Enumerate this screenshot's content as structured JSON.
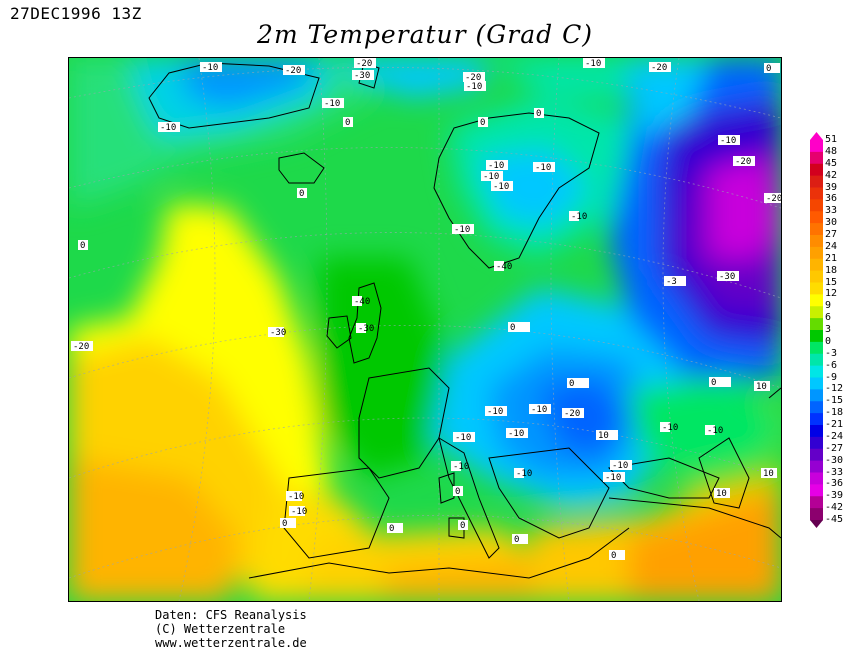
{
  "header": {
    "timestamp": "27DEC1996 13Z",
    "title": "2m Temperatur (Grad C)"
  },
  "legend": {
    "unit_labels": [
      "51",
      "48",
      "45",
      "42",
      "39",
      "36",
      "33",
      "30",
      "27",
      "24",
      "21",
      "18",
      "15",
      "12",
      "9",
      "6",
      "3",
      "0",
      "-3",
      "-6",
      "-9",
      "-12",
      "-15",
      "-18",
      "-21",
      "-24",
      "-27",
      "-30",
      "-33",
      "-36",
      "-39",
      "-42",
      "-45"
    ],
    "colors": [
      "#ff00c8",
      "#e6006e",
      "#d2001e",
      "#dc1e14",
      "#eb320a",
      "#f54600",
      "#ff5a00",
      "#ff7300",
      "#ff8c00",
      "#ffa000",
      "#ffb400",
      "#ffc800",
      "#ffdc00",
      "#ffff00",
      "#c8f000",
      "#64dc00",
      "#00c800",
      "#00e664",
      "#00e6aa",
      "#00e6e6",
      "#00c8ff",
      "#0096ff",
      "#0064ff",
      "#0032ff",
      "#0000e6",
      "#3200d2",
      "#6400c8",
      "#9600d2",
      "#c800dc",
      "#e600e6",
      "#b40096",
      "#8c006e",
      "#640050"
    ]
  },
  "contour_labels": [
    {
      "text": "-10",
      "lon_region": "greenland-south"
    },
    {
      "text": "-20",
      "lon_region": "greenland-east"
    },
    {
      "text": "-20",
      "lon_region": "svalbard"
    },
    {
      "text": "-30",
      "lon_region": "svalbard"
    },
    {
      "text": "-20",
      "lon_region": "svalbard"
    },
    {
      "text": "-10",
      "lon_region": "svalbard"
    },
    {
      "text": "-20",
      "lon_region": "barents"
    },
    {
      "text": "-10",
      "lon_region": "barents"
    },
    {
      "text": "-10",
      "lon_region": "jan-mayen"
    },
    {
      "text": "-10",
      "lon_region": "greenland-southwest"
    },
    {
      "text": "0",
      "lon_region": "norwegian-sea"
    },
    {
      "text": "0",
      "lon_region": "north-atlantic"
    },
    {
      "text": "0",
      "lon_region": "north-cape"
    },
    {
      "text": "-10",
      "lon_region": "kola"
    },
    {
      "text": "-10",
      "lon_region": "lapland"
    },
    {
      "text": "-10",
      "lon_region": "lapland"
    },
    {
      "text": "-10",
      "lon_region": "lapland"
    },
    {
      "text": "-10",
      "lon_region": "finland"
    },
    {
      "text": "-10",
      "lon_region": "norway"
    },
    {
      "text": "0",
      "lon_region": "gulf-of-bothnia"
    },
    {
      "text": "0",
      "lon_region": "iceland"
    },
    {
      "text": "0",
      "lon_region": "mid-atlantic"
    },
    {
      "text": "-10",
      "lon_region": "arctic-russia-east"
    },
    {
      "text": "-20",
      "lon_region": "arctic-russia-east"
    },
    {
      "text": "-20",
      "lon_region": "arctic-russia-east"
    },
    {
      "text": "-3",
      "lon_region": "arctic-russia-east"
    },
    {
      "text": "-30",
      "lon_region": "ural"
    },
    {
      "text": "-40",
      "lon_region": "ural"
    },
    {
      "text": "-40",
      "lon_region": "ural"
    },
    {
      "text": "-30",
      "lon_region": "ural"
    },
    {
      "text": "-30",
      "lon_region": "central-russia"
    },
    {
      "text": "-20",
      "lon_region": "central-russia"
    },
    {
      "text": "0",
      "lon_region": "baltic"
    },
    {
      "text": "0",
      "lon_region": "scotland"
    },
    {
      "text": "0",
      "lon_region": "ireland"
    },
    {
      "text": "10",
      "lon_region": "atlantic-west"
    },
    {
      "text": "-10",
      "lon_region": "atlantic-far-west"
    },
    {
      "text": "-10",
      "lon_region": "poland"
    },
    {
      "text": "-10",
      "lon_region": "ukraine"
    },
    {
      "text": "-20",
      "lon_region": "ukraine"
    },
    {
      "text": "-10",
      "lon_region": "russia-south"
    },
    {
      "text": "10",
      "lon_region": "kazakhstan"
    },
    {
      "text": "-10",
      "lon_region": "germany"
    },
    {
      "text": "-10",
      "lon_region": "czechia"
    },
    {
      "text": "-10",
      "lon_region": "hungary"
    },
    {
      "text": "-10",
      "lon_region": "alps"
    },
    {
      "text": "-10",
      "lon_region": "romania"
    },
    {
      "text": "-10",
      "lon_region": "france-east"
    },
    {
      "text": "0",
      "lon_region": "black-sea"
    },
    {
      "text": "0",
      "lon_region": "caspian"
    },
    {
      "text": "-10",
      "lon_region": "balkans"
    },
    {
      "text": "-10",
      "lon_region": "balkans"
    },
    {
      "text": "0",
      "lon_region": "adriatic"
    },
    {
      "text": "0",
      "lon_region": "italy"
    },
    {
      "text": "0",
      "lon_region": "corsica"
    },
    {
      "text": "0",
      "lon_region": "sardinia"
    },
    {
      "text": "10",
      "lon_region": "iberia"
    },
    {
      "text": "10",
      "lon_region": "iberia"
    },
    {
      "text": "10",
      "lon_region": "iberia"
    },
    {
      "text": "10",
      "lon_region": "mediterranean"
    },
    {
      "text": "10",
      "lon_region": "libya"
    },
    {
      "text": "10",
      "lon_region": "aegean"
    },
    {
      "text": "10",
      "lon_region": "turkey"
    },
    {
      "text": "10",
      "lon_region": "iran"
    }
  ],
  "credits": {
    "line1": "Daten: CFS Reanalysis",
    "line2": "(C) Wetterzentrale",
    "line3": "www.wetterzentrale.de"
  }
}
